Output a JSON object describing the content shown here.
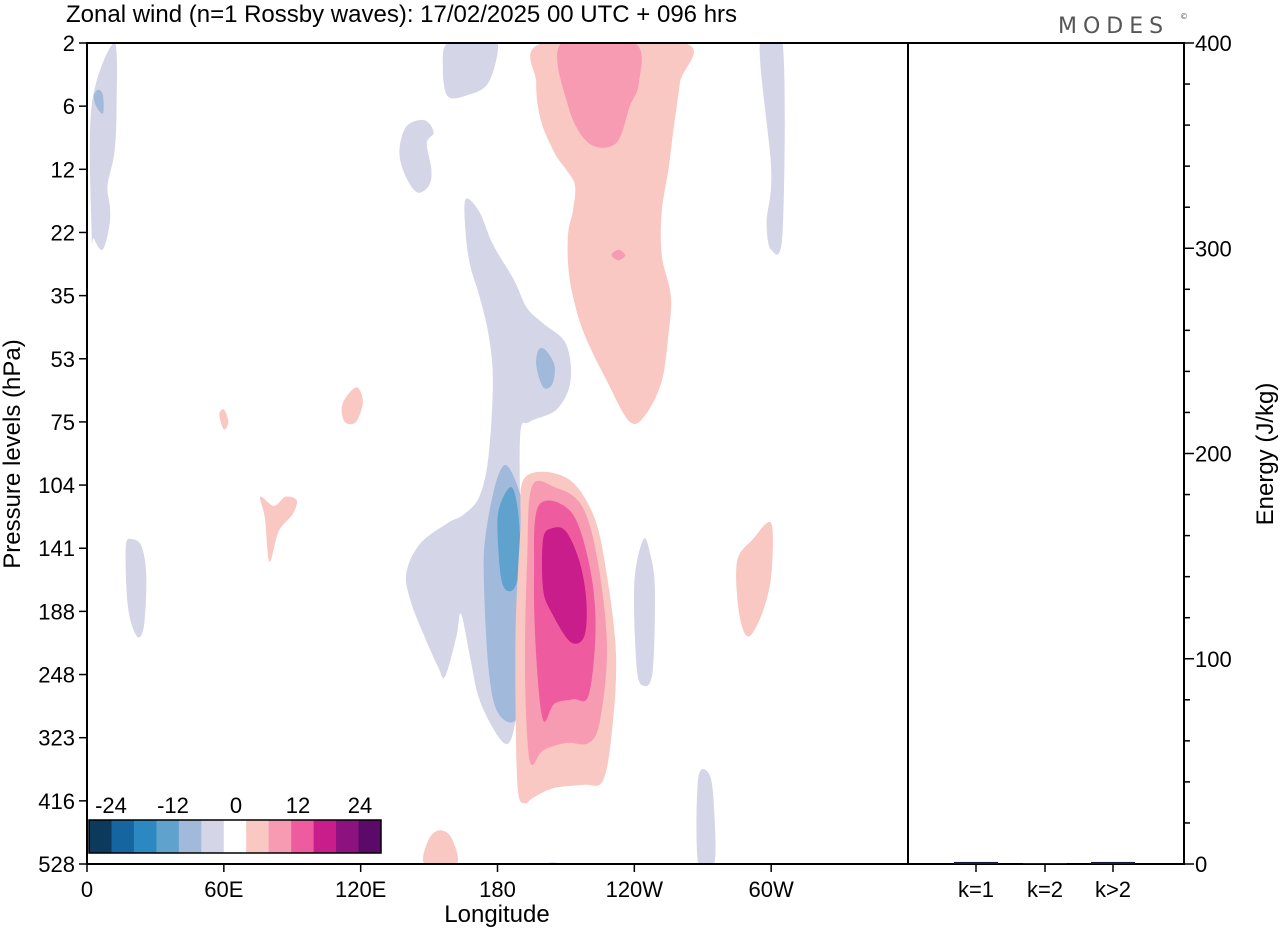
{
  "title": "Zonal wind (n=1 Rossby waves):  17/02/2025  00 UTC  + 096 hrs",
  "brand": "MODES",
  "brand_mark": "©",
  "chart_data": [
    {
      "type": "heatmap",
      "xlabel": "Longitude",
      "ylabel": "Pressure levels (hPa)",
      "x_ticks": [
        "0",
        "60E",
        "120E",
        "180",
        "120W",
        "60W"
      ],
      "y_ticks": [
        "2",
        "6",
        "12",
        "22",
        "35",
        "53",
        "75",
        "104",
        "141",
        "188",
        "248",
        "323",
        "416",
        "528"
      ],
      "colorbar": {
        "tick_labels": [
          "-24",
          "-12",
          "0",
          "12",
          "24"
        ],
        "colors": [
          "#0b3a5c",
          "#1565a0",
          "#2b88c0",
          "#5ea2cd",
          "#a1b9da",
          "#d4d6e8",
          "#ffffff",
          "#f9c8c3",
          "#f79bb3",
          "#ef5b9f",
          "#c81d8a",
          "#8c1280",
          "#5b0a6a"
        ]
      },
      "contours": [
        {
          "level": -4,
          "color": "#d4d6e8",
          "points": [
            [
              2,
              6
            ],
            [
              2,
              22
            ],
            [
              3,
              23
            ],
            [
              6,
              25
            ],
            [
              8,
              24
            ],
            [
              10,
              20
            ],
            [
              10,
              17
            ],
            [
              9,
              14
            ],
            [
              12,
              10
            ],
            [
              13,
              6
            ],
            [
              12,
              2
            ]
          ]
        },
        {
          "level": -8,
          "color": "#a1b9da",
          "points": [
            [
              3,
              5
            ],
            [
              4,
              6
            ],
            [
              7,
              6.5
            ],
            [
              7,
              5
            ],
            [
              5,
              4.5
            ]
          ]
        },
        {
          "level": -4,
          "color": "#d4d6e8",
          "points": [
            [
              156,
              3
            ],
            [
              158,
              5
            ],
            [
              166,
              5
            ],
            [
              176,
              4
            ],
            [
              180,
              2
            ],
            [
              170,
              1.5
            ],
            [
              158,
              1.8
            ]
          ]
        },
        {
          "level": -4,
          "color": "#d4d6e8",
          "points": [
            [
              137,
              10
            ],
            [
              140,
              13
            ],
            [
              145,
              15
            ],
            [
              150,
              14
            ],
            [
              151,
              12
            ],
            [
              149,
              9
            ],
            [
              152,
              8
            ],
            [
              148,
              7
            ],
            [
              140,
              7.5
            ]
          ]
        },
        {
          "level": -4,
          "color": "#d4d6e8",
          "points": [
            [
              166,
              22
            ],
            [
              168,
              28
            ],
            [
              172,
              35
            ],
            [
              176,
              45
            ],
            [
              178,
              60
            ],
            [
              176,
              90
            ],
            [
              172,
              110
            ],
            [
              165,
              120
            ],
            [
              158,
              125
            ],
            [
              146,
              138
            ],
            [
              140,
              158
            ],
            [
              142,
              180
            ],
            [
              148,
              210
            ],
            [
              154,
              240
            ],
            [
              157,
              250
            ],
            [
              162,
              210
            ],
            [
              164,
              190
            ],
            [
              168,
              230
            ],
            [
              172,
              275
            ],
            [
              180,
              320
            ],
            [
              185,
              330
            ],
            [
              188,
              300
            ],
            [
              190,
              260
            ],
            [
              190,
              210
            ],
            [
              190,
              130
            ],
            [
              190,
              80
            ],
            [
              194,
              75
            ],
            [
              206,
              70
            ],
            [
              212,
              60
            ],
            [
              210,
              48
            ],
            [
              200,
              42
            ],
            [
              193,
              38
            ],
            [
              187,
              31
            ],
            [
              178,
              24
            ],
            [
              172,
              18
            ],
            [
              166,
              16
            ]
          ]
        },
        {
          "level": -8,
          "color": "#a1b9da",
          "points": [
            [
              174,
              160
            ],
            [
              176,
              240
            ],
            [
              180,
              290
            ],
            [
              188,
              300
            ],
            [
              193,
              250
            ],
            [
              193,
              170
            ],
            [
              192,
              120
            ],
            [
              185,
              95
            ],
            [
              180,
              100
            ],
            [
              175,
              130
            ]
          ]
        },
        {
          "level": -12,
          "color": "#5ea2cd",
          "points": [
            [
              180,
              130
            ],
            [
              182,
              165
            ],
            [
              187,
              170
            ],
            [
              190,
              150
            ],
            [
              189,
              118
            ],
            [
              186,
              105
            ],
            [
              181,
              115
            ]
          ]
        },
        {
          "level": -8,
          "color": "#a1b9da",
          "points": [
            [
              197,
              55
            ],
            [
              200,
              62
            ],
            [
              204,
              61
            ],
            [
              205,
              55
            ],
            [
              201,
              50
            ],
            [
              198,
              50
            ]
          ]
        },
        {
          "level": -4,
          "color": "#d4d6e8",
          "points": [
            [
              17,
              140
            ],
            [
              18,
              185
            ],
            [
              22,
              210
            ],
            [
              25,
              200
            ],
            [
              26,
              160
            ],
            [
              24,
              140
            ],
            [
              20,
              135
            ]
          ]
        },
        {
          "level": -4,
          "color": "#d4d6e8",
          "points": [
            [
              240,
              165
            ],
            [
              241,
              240
            ],
            [
              244,
              260
            ],
            [
              248,
              245
            ],
            [
              249,
              170
            ],
            [
              247,
              145
            ],
            [
              244,
              135
            ]
          ]
        },
        {
          "level": -4,
          "color": "#d4d6e8",
          "points": [
            [
              268,
              380
            ],
            [
              268,
              528
            ],
            [
              275,
              528
            ],
            [
              275,
              430
            ],
            [
              273,
              375
            ]
          ]
        },
        {
          "level": -4,
          "color": "#d4d6e8",
          "points": [
            [
              200,
              528
            ],
            [
              204,
              525
            ],
            [
              208,
              528
            ]
          ]
        },
        {
          "level": -4,
          "color": "#d4d6e8",
          "points": [
            [
              295,
              2
            ],
            [
              300,
              12
            ],
            [
              298,
              20
            ],
            [
              300,
              25
            ],
            [
              305,
              22
            ],
            [
              305,
              2
            ]
          ]
        },
        {
          "level": 4,
          "color": "#f9c8c3",
          "points": [
            [
              200,
              2
            ],
            [
              197,
              4
            ],
            [
              199,
              7
            ],
            [
              205,
              10
            ],
            [
              210,
              12
            ],
            [
              214,
              14
            ],
            [
              213,
              18
            ],
            [
              211,
              22
            ],
            [
              211,
              28
            ],
            [
              213,
              35
            ],
            [
              218,
              45
            ],
            [
              228,
              60
            ],
            [
              238,
              75
            ],
            [
              245,
              72
            ],
            [
              252,
              60
            ],
            [
              255,
              45
            ],
            [
              256,
              35
            ],
            [
              252,
              26
            ],
            [
              252,
              18
            ],
            [
              255,
              12
            ],
            [
              257,
              8
            ],
            [
              260,
              4
            ],
            [
              262,
              2
            ]
          ]
        },
        {
          "level": 8,
          "color": "#f79bb3",
          "points": [
            [
              208,
              2
            ],
            [
              211,
              6
            ],
            [
              220,
              9
            ],
            [
              232,
              9
            ],
            [
              238,
              6
            ],
            [
              242,
              4
            ],
            [
              240,
              2
            ]
          ]
        },
        {
          "level": 8,
          "color": "#f79bb3",
          "points": [
            [
              230,
              26
            ],
            [
              233,
              27
            ],
            [
              236,
              26
            ],
            [
              233,
              25
            ]
          ]
        },
        {
          "level": 4,
          "color": "#f9c8c3",
          "points": [
            [
              192,
              100
            ],
            [
              190,
              130
            ],
            [
              188,
              200
            ],
            [
              188,
              300
            ],
            [
              189,
              400
            ],
            [
              192,
              420
            ],
            [
              196,
              410
            ],
            [
              205,
              395
            ],
            [
              218,
              390
            ],
            [
              226,
              385
            ],
            [
              230,
              320
            ],
            [
              232,
              230
            ],
            [
              228,
              160
            ],
            [
              222,
              120
            ],
            [
              210,
              100
            ]
          ]
        },
        {
          "level": 8,
          "color": "#f79bb3",
          "points": [
            [
              195,
              105
            ],
            [
              193,
              150
            ],
            [
              192,
              230
            ],
            [
              193,
              320
            ],
            [
              195,
              360
            ],
            [
              200,
              340
            ],
            [
              210,
              330
            ],
            [
              220,
              330
            ],
            [
              225,
              300
            ],
            [
              228,
              220
            ],
            [
              224,
              150
            ],
            [
              217,
              115
            ],
            [
              205,
              105
            ]
          ]
        },
        {
          "level": 12,
          "color": "#ef5b9f",
          "points": [
            [
              198,
              115
            ],
            [
              196,
              160
            ],
            [
              197,
              230
            ],
            [
              200,
              300
            ],
            [
              205,
              280
            ],
            [
              213,
              275
            ],
            [
              220,
              270
            ],
            [
              223,
              200
            ],
            [
              220,
              150
            ],
            [
              212,
              118
            ]
          ]
        },
        {
          "level": 16,
          "color": "#c81d8a",
          "points": [
            [
              200,
              135
            ],
            [
              200,
              170
            ],
            [
              204,
              190
            ],
            [
              212,
              215
            ],
            [
              218,
              210
            ],
            [
              219,
              180
            ],
            [
              216,
              150
            ],
            [
              210,
              130
            ],
            [
              204,
              128
            ]
          ]
        },
        {
          "level": 4,
          "color": "#f9c8c3",
          "points": [
            [
              78,
              122
            ],
            [
              80,
              150
            ],
            [
              84,
              130
            ],
            [
              90,
              120
            ],
            [
              92,
              112
            ],
            [
              87,
              110
            ],
            [
              82,
              115
            ],
            [
              76,
              110
            ]
          ]
        },
        {
          "level": 4,
          "color": "#f9c8c3",
          "points": [
            [
              112,
              68
            ],
            [
              113,
              75
            ],
            [
              118,
              75
            ],
            [
              121,
              67
            ],
            [
              118,
              62
            ]
          ]
        },
        {
          "level": 4,
          "color": "#f9c8c3",
          "points": [
            [
              58,
              72
            ],
            [
              60,
              78
            ],
            [
              62,
              75
            ],
            [
              60,
              70
            ]
          ]
        },
        {
          "level": 4,
          "color": "#f9c8c3",
          "points": [
            [
              285,
              150
            ],
            [
              286,
              190
            ],
            [
              290,
              210
            ],
            [
              296,
              190
            ],
            [
              300,
              160
            ],
            [
              300,
              125
            ],
            [
              292,
              135
            ]
          ]
        },
        {
          "level": 4,
          "color": "#f9c8c3",
          "points": [
            [
              148,
              528
            ],
            [
              150,
              480
            ],
            [
              155,
              465
            ],
            [
              160,
              480
            ],
            [
              162,
              528
            ]
          ]
        }
      ]
    },
    {
      "type": "bar",
      "ylabel": "Energy (J/kg)",
      "categories": [
        "k=1",
        "k=2",
        "k>2"
      ],
      "values": [
        1,
        0,
        1
      ],
      "ylim": [
        0,
        400
      ],
      "y_ticks": [
        "0",
        "100",
        "200",
        "300",
        "400"
      ]
    }
  ]
}
